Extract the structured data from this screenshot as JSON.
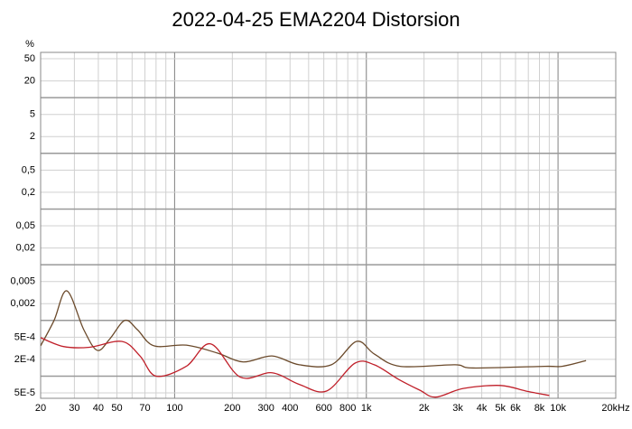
{
  "chart_data": {
    "type": "line",
    "title": "2022-04-25 EMA2204 Distorsion",
    "y_label": "%",
    "xlog": true,
    "ylog": true,
    "grid": true,
    "xlim": [
      20,
      20000
    ],
    "ylim": [
      4e-05,
      65
    ],
    "xticks": [
      20,
      30,
      40,
      50,
      70,
      100,
      200,
      300,
      400,
      600,
      800,
      {
        "value": 1000,
        "label": "1k"
      },
      {
        "value": 2000,
        "label": "2k"
      },
      {
        "value": 3000,
        "label": "3k"
      },
      {
        "value": 4000,
        "label": "4k"
      },
      {
        "value": 5000,
        "label": "5k"
      },
      {
        "value": 6000,
        "label": "6k"
      },
      {
        "value": 8000,
        "label": "8k"
      },
      {
        "value": 10000,
        "label": "10k"
      },
      {
        "value": 20000,
        "label": "20kHz"
      }
    ],
    "x_minor_grid": [
      60,
      80,
      90,
      500,
      700,
      900,
      7000,
      9000
    ],
    "x_major_grid": [
      100,
      1000,
      10000
    ],
    "yticks": [
      50,
      20,
      5,
      2,
      {
        "value": 0.5,
        "label": "0,5"
      },
      {
        "value": 0.2,
        "label": "0,2"
      },
      {
        "value": 0.05,
        "label": "0,05"
      },
      {
        "value": 0.02,
        "label": "0,02"
      },
      {
        "value": 0.005,
        "label": "0,005"
      },
      {
        "value": 0.002,
        "label": "0,002"
      },
      {
        "value": 0.0005,
        "label": "5E-4"
      },
      {
        "value": 0.0002,
        "label": "2E-4"
      },
      {
        "value": 5e-05,
        "label": "5E-5"
      }
    ],
    "y_major_grid": [
      10,
      1,
      0.1,
      0.01,
      0.001,
      0.0001
    ],
    "series": [
      {
        "color": "#6b4a2b",
        "x": [
          20,
          23.5,
          27.4,
          33.6,
          39.5,
          46,
          55,
          64,
          78,
          115,
          167,
          228,
          322,
          447,
          657,
          890,
          1100,
          1500,
          2900,
          3600,
          8500,
          10500,
          14000
        ],
        "values": [
          0.00035,
          0.001,
          0.0034,
          0.00068,
          0.00029,
          0.00047,
          0.001,
          0.00068,
          0.00035,
          0.00036,
          0.00026,
          0.00018,
          0.00023,
          0.00016,
          0.00016,
          0.00042,
          0.00025,
          0.00015,
          0.00016,
          0.00014,
          0.00015,
          0.00015,
          0.00019
        ]
      },
      {
        "color": "#c0202a",
        "x": [
          20,
          26.3,
          36,
          53,
          66,
          80,
          115,
          154,
          220,
          322,
          447,
          620,
          870,
          1100,
          1470,
          1900,
          2300,
          3200,
          5000,
          6800,
          9000
        ],
        "values": [
          0.00049,
          0.00034,
          0.00033,
          0.00042,
          0.00023,
          0.0001,
          0.00015,
          0.00038,
          9.6e-05,
          0.000115,
          7.1e-05,
          5.4e-05,
          0.00017,
          0.00016,
          8.8e-05,
          5.6e-05,
          4.2e-05,
          6e-05,
          6.8e-05,
          5.4e-05,
          4.5e-05
        ]
      }
    ]
  }
}
